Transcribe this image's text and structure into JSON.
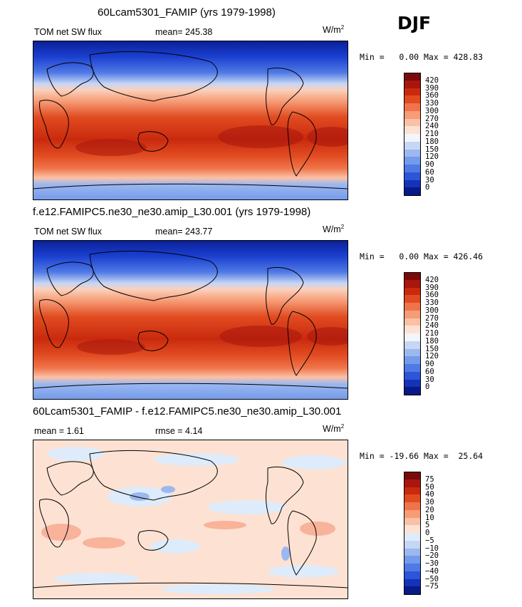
{
  "season": "DJF",
  "panels": [
    {
      "title": "60Lcam5301_FAMIP (yrs 1979-1998)",
      "left_label": "TOM net SW flux",
      "mid_label": "mean=  245.38",
      "unit": "W/m",
      "unit_exp": "2",
      "minmax": "Min =   0.00 Max = 428.83",
      "kind": "abs",
      "colorbar_ticks": [
        "420",
        "390",
        "360",
        "330",
        "300",
        "270",
        "240",
        "210",
        "180",
        "150",
        "120",
        "90",
        "60",
        "30",
        "0"
      ],
      "colorbar_colors": [
        "#7a0a0a",
        "#a8160d",
        "#c92a0e",
        "#e14b21",
        "#f0744a",
        "#f69c76",
        "#fbc1a6",
        "#fde2d3",
        "#f2f5fb",
        "#c6d6f5",
        "#9cb8ef",
        "#739aeb",
        "#4f79e5",
        "#2d55d8",
        "#1433b8",
        "#081a86"
      ]
    },
    {
      "title": "f.e12.FAMIPC5.ne30_ne30.amip_L30.001 (yrs 1979-1998)",
      "left_label": "TOM net SW flux",
      "mid_label": "mean=  243.77",
      "unit": "W/m",
      "unit_exp": "2",
      "minmax": "Min =   0.00 Max = 426.46",
      "kind": "abs",
      "colorbar_ticks": [
        "420",
        "390",
        "360",
        "330",
        "300",
        "270",
        "240",
        "210",
        "180",
        "150",
        "120",
        "90",
        "60",
        "30",
        "0"
      ],
      "colorbar_colors": [
        "#7a0a0a",
        "#a8160d",
        "#c92a0e",
        "#e14b21",
        "#f0744a",
        "#f69c76",
        "#fbc1a6",
        "#fde2d3",
        "#f2f5fb",
        "#c6d6f5",
        "#9cb8ef",
        "#739aeb",
        "#4f79e5",
        "#2d55d8",
        "#1433b8",
        "#081a86"
      ]
    },
    {
      "title": "60Lcam5301_FAMIP - f.e12.FAMIPC5.ne30_ne30.amip_L30.001",
      "left_label": "mean =    1.61",
      "mid_label": "rmse =    4.14",
      "unit": "W/m",
      "unit_exp": "2",
      "minmax": "Min = -19.66 Max =  25.64",
      "kind": "diff",
      "colorbar_ticks": [
        "75",
        "50",
        "40",
        "30",
        "20",
        "10",
        "5",
        "0",
        "−5",
        "−10",
        "−20",
        "−30",
        "−40",
        "−50",
        "−75"
      ],
      "colorbar_colors": [
        "#7a0a0a",
        "#a8160d",
        "#c92a0e",
        "#e14b21",
        "#f0744a",
        "#f69c76",
        "#fbc1a6",
        "#fde2d3",
        "#deebfa",
        "#c6d6f5",
        "#9cb8ef",
        "#739aeb",
        "#4f79e5",
        "#2d55d8",
        "#1433b8",
        "#081a86"
      ]
    }
  ]
}
